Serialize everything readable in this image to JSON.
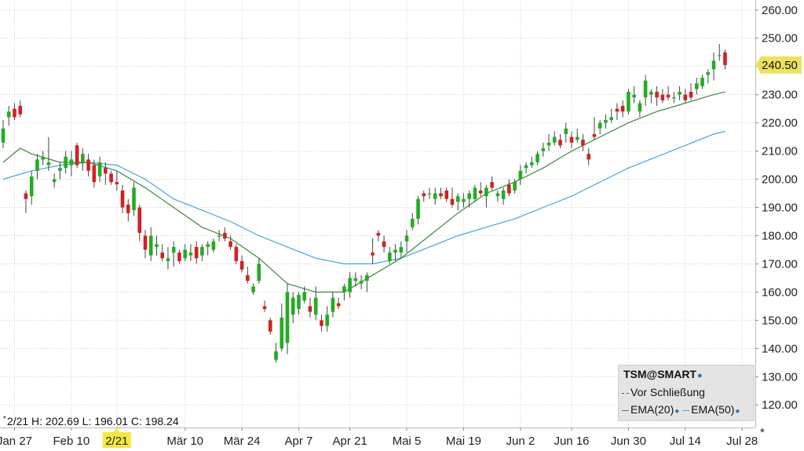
{
  "chart_data": {
    "type": "candlestick",
    "symbol": "TSM@SMART",
    "y_ticks": [
      120,
      130,
      140,
      150,
      160,
      170,
      180,
      190,
      200,
      210,
      220,
      230,
      240,
      250,
      260
    ],
    "y_tick_labels": [
      "120.00",
      "130.00",
      "140.00",
      "150.00",
      "160.00",
      "170.00",
      "180.00",
      "190.00",
      "200.00",
      "210.00",
      "220.00",
      "230.00",
      "240.00",
      "250.00",
      "260.00"
    ],
    "ylim": [
      112,
      263
    ],
    "x_tick_labels": [
      "Jan 27",
      "Feb 10",
      "2/21",
      "Mär 10",
      "Mär 24",
      "Apr 7",
      "Apr 21",
      "Mai 5",
      "Mai 19",
      "Jun 2",
      "Jun 16",
      "Jun 30",
      "Jul 14",
      "Jul 28"
    ],
    "x_tick_index": [
      2,
      12,
      20,
      32,
      42,
      52,
      61,
      71,
      81,
      91,
      100,
      110,
      120,
      130
    ],
    "highlighted_x_label": "2/21",
    "last_price": "240.50",
    "last_price_value": 240.5,
    "grid": true,
    "up_color": "#1fae1f",
    "down_color": "#d61f1f",
    "ema20_color": "#3b8a3b",
    "ema50_color": "#41a5e0",
    "ohlc_readout": "2/21 H: 202.69 L: 196.01 C: 198.24",
    "legend": {
      "title": "TSM@SMART",
      "close_label": "Vor Schließung",
      "ema20_label": "EMA(20)",
      "ema50_label": "EMA(50)"
    },
    "candles": [
      [
        0,
        213,
        221,
        211,
        218
      ],
      [
        1,
        222,
        226,
        219,
        224
      ],
      [
        2,
        225,
        227,
        221,
        222
      ],
      [
        3,
        226,
        228,
        222,
        223
      ],
      [
        4,
        195,
        196,
        188,
        193
      ],
      [
        5,
        194,
        203,
        191,
        201
      ],
      [
        6,
        203,
        209,
        200,
        207
      ],
      [
        7,
        207,
        210,
        205,
        208
      ],
      [
        8,
        205,
        215,
        203,
        206
      ],
      [
        9,
        199,
        202,
        197,
        200
      ],
      [
        10,
        203,
        206,
        200,
        204
      ],
      [
        11,
        204,
        210,
        202,
        208
      ],
      [
        12,
        205,
        210,
        201,
        207
      ],
      [
        13,
        212,
        213,
        204,
        205
      ],
      [
        14,
        206,
        211,
        203,
        209
      ],
      [
        15,
        207,
        209,
        201,
        203
      ],
      [
        16,
        205,
        207,
        197,
        199
      ],
      [
        17,
        201,
        208,
        199,
        206
      ],
      [
        18,
        204,
        206,
        198,
        202
      ],
      [
        19,
        202,
        203,
        198,
        199
      ],
      [
        20,
        199,
        202.69,
        196.01,
        198.24
      ],
      [
        21,
        196,
        198,
        188,
        190
      ],
      [
        22,
        191,
        193,
        185,
        188
      ],
      [
        23,
        189,
        199,
        187,
        197
      ],
      [
        24,
        190,
        191,
        178,
        181
      ],
      [
        25,
        180,
        182,
        172,
        175
      ],
      [
        26,
        173,
        183,
        171,
        180
      ],
      [
        27,
        176,
        180,
        173,
        177
      ],
      [
        28,
        174,
        177,
        171,
        172
      ],
      [
        29,
        171,
        176,
        168,
        172
      ],
      [
        30,
        174,
        178,
        169,
        176
      ],
      [
        31,
        174,
        175,
        170,
        171
      ],
      [
        32,
        172,
        177,
        171,
        175
      ],
      [
        33,
        173,
        177,
        171,
        174
      ],
      [
        34,
        176,
        178,
        170,
        172
      ],
      [
        35,
        173,
        177,
        171,
        176
      ],
      [
        36,
        176,
        178,
        173,
        177
      ],
      [
        37,
        175,
        179,
        174,
        178
      ],
      [
        38,
        180,
        182,
        178,
        180
      ],
      [
        39,
        181,
        183,
        178,
        179
      ],
      [
        40,
        178,
        180,
        175,
        176
      ],
      [
        41,
        176,
        177,
        170,
        171
      ],
      [
        42,
        171,
        173,
        167,
        168
      ],
      [
        43,
        166,
        169,
        163,
        164
      ],
      [
        44,
        160,
        163,
        159,
        162
      ],
      [
        45,
        164,
        172,
        163,
        170
      ],
      [
        46,
        155,
        157,
        153,
        154
      ],
      [
        47,
        150,
        151,
        145,
        146
      ],
      [
        48,
        136,
        142,
        135,
        139
      ],
      [
        49,
        140,
        156,
        139,
        151
      ],
      [
        50,
        142,
        163,
        138,
        160
      ],
      [
        51,
        152,
        160,
        149,
        158
      ],
      [
        52,
        154,
        160,
        152,
        159
      ],
      [
        53,
        157,
        162,
        156,
        160
      ],
      [
        54,
        155,
        158,
        151,
        153
      ],
      [
        55,
        152,
        162,
        150,
        158
      ],
      [
        56,
        150,
        152,
        146,
        148
      ],
      [
        57,
        148,
        155,
        146,
        152
      ],
      [
        58,
        153,
        160,
        151,
        158
      ],
      [
        59,
        156,
        158,
        154,
        155
      ],
      [
        60,
        160,
        163,
        157,
        162
      ],
      [
        61,
        160,
        167,
        158,
        165
      ],
      [
        62,
        164,
        167,
        162,
        165
      ],
      [
        63,
        163,
        166,
        161,
        164
      ],
      [
        64,
        164,
        167,
        160,
        166
      ],
      [
        65,
        174,
        179,
        170,
        173
      ],
      [
        66,
        181,
        182,
        178,
        180
      ],
      [
        67,
        178,
        180,
        174,
        176
      ],
      [
        68,
        171,
        176,
        170,
        174
      ],
      [
        69,
        174,
        177,
        171,
        175
      ],
      [
        70,
        174,
        178,
        172,
        176
      ],
      [
        71,
        178,
        182,
        174,
        180
      ],
      [
        72,
        183,
        188,
        182,
        186
      ],
      [
        73,
        186,
        194,
        184,
        193
      ],
      [
        74,
        195,
        196,
        192,
        194
      ],
      [
        75,
        195,
        197,
        193,
        195
      ],
      [
        76,
        193,
        197,
        191,
        195
      ],
      [
        77,
        195,
        197,
        193,
        194
      ],
      [
        78,
        196,
        197,
        192,
        193
      ],
      [
        79,
        193,
        197,
        190,
        191
      ],
      [
        80,
        192,
        195,
        189,
        194
      ],
      [
        81,
        192,
        195,
        190,
        193
      ],
      [
        82,
        193,
        196,
        190,
        195
      ],
      [
        83,
        193,
        198,
        192,
        197
      ],
      [
        84,
        196,
        199,
        194,
        195
      ],
      [
        85,
        194,
        198,
        190,
        197
      ],
      [
        86,
        199,
        201,
        196,
        197
      ],
      [
        87,
        194,
        196,
        192,
        195
      ],
      [
        88,
        193,
        197,
        191,
        196
      ],
      [
        89,
        198,
        200,
        194,
        195
      ],
      [
        90,
        196,
        200,
        195,
        199
      ],
      [
        91,
        200,
        205,
        198,
        203
      ],
      [
        92,
        204,
        206,
        202,
        205
      ],
      [
        93,
        205,
        208,
        204,
        206
      ],
      [
        94,
        206,
        210,
        205,
        209
      ],
      [
        95,
        210,
        213,
        208,
        211
      ],
      [
        96,
        212,
        216,
        210,
        213
      ],
      [
        97,
        213,
        217,
        212,
        215
      ],
      [
        98,
        214,
        216,
        211,
        212
      ],
      [
        99,
        216,
        220,
        213,
        218
      ],
      [
        100,
        215,
        217,
        211,
        213
      ],
      [
        101,
        214,
        218,
        213,
        215
      ],
      [
        102,
        214,
        216,
        210,
        212
      ],
      [
        103,
        209,
        211,
        205,
        207
      ],
      [
        104,
        216,
        222,
        214,
        215
      ],
      [
        105,
        218,
        221,
        216,
        220
      ],
      [
        106,
        220,
        223,
        218,
        221
      ],
      [
        107,
        221,
        225,
        220,
        222
      ],
      [
        108,
        225,
        227,
        221,
        224
      ],
      [
        109,
        226,
        228,
        222,
        224
      ],
      [
        110,
        224,
        232,
        223,
        231
      ],
      [
        111,
        229,
        233,
        227,
        230
      ],
      [
        112,
        224,
        228,
        222,
        227
      ],
      [
        113,
        229,
        237,
        226,
        235
      ],
      [
        114,
        230,
        232,
        227,
        231
      ],
      [
        115,
        231,
        233,
        226,
        229
      ],
      [
        116,
        230,
        232,
        227,
        228
      ],
      [
        117,
        230,
        233,
        228,
        229
      ],
      [
        118,
        229,
        231,
        227,
        229
      ],
      [
        119,
        230,
        233,
        228,
        231
      ],
      [
        120,
        230,
        232,
        227,
        228
      ],
      [
        121,
        231,
        234,
        228,
        229
      ],
      [
        122,
        232,
        236,
        230,
        234
      ],
      [
        123,
        233,
        237,
        232,
        236
      ],
      [
        124,
        237,
        239,
        234,
        238
      ],
      [
        125,
        239,
        245,
        235,
        242
      ],
      [
        126,
        244,
        248,
        242,
        244
      ],
      [
        127,
        245,
        246,
        239,
        240.5
      ]
    ],
    "ema20": [
      [
        0,
        206
      ],
      [
        3,
        211
      ],
      [
        5,
        209
      ],
      [
        10,
        206
      ],
      [
        15,
        206
      ],
      [
        20,
        203
      ],
      [
        25,
        197
      ],
      [
        30,
        190
      ],
      [
        35,
        183
      ],
      [
        40,
        179
      ],
      [
        45,
        172
      ],
      [
        50,
        163
      ],
      [
        55,
        160
      ],
      [
        60,
        160
      ],
      [
        65,
        166
      ],
      [
        70,
        172
      ],
      [
        75,
        180
      ],
      [
        80,
        188
      ],
      [
        85,
        195
      ],
      [
        90,
        199
      ],
      [
        95,
        204
      ],
      [
        100,
        210
      ],
      [
        105,
        215
      ],
      [
        110,
        220
      ],
      [
        115,
        224
      ],
      [
        120,
        227
      ],
      [
        125,
        230
      ],
      [
        127,
        231
      ]
    ],
    "ema50": [
      [
        0,
        200
      ],
      [
        5,
        203
      ],
      [
        10,
        205
      ],
      [
        15,
        206
      ],
      [
        20,
        205
      ],
      [
        25,
        200
      ],
      [
        30,
        193
      ],
      [
        35,
        189
      ],
      [
        40,
        185
      ],
      [
        45,
        180
      ],
      [
        50,
        176
      ],
      [
        55,
        172
      ],
      [
        60,
        170
      ],
      [
        65,
        170
      ],
      [
        70,
        172
      ],
      [
        75,
        176
      ],
      [
        80,
        180
      ],
      [
        85,
        183
      ],
      [
        90,
        186
      ],
      [
        95,
        190
      ],
      [
        100,
        194
      ],
      [
        105,
        199
      ],
      [
        110,
        204
      ],
      [
        115,
        208
      ],
      [
        120,
        212
      ],
      [
        125,
        216
      ],
      [
        127,
        217
      ]
    ]
  }
}
